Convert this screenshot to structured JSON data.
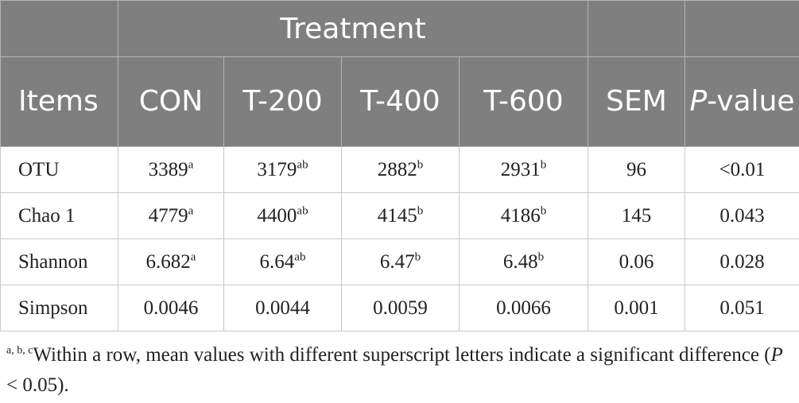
{
  "header": {
    "group_label": "Treatment",
    "items_label": "Items",
    "columns": [
      "CON",
      "T-200",
      "T-400",
      "T-600",
      "SEM"
    ],
    "pvalue_italic": "P",
    "pvalue_rest": "-value"
  },
  "rows": [
    {
      "item": "OTU",
      "values": [
        {
          "v": "3389",
          "s": "a"
        },
        {
          "v": "3179",
          "s": "ab"
        },
        {
          "v": "2882",
          "s": "b"
        },
        {
          "v": "2931",
          "s": "b"
        },
        {
          "v": "96",
          "s": ""
        },
        {
          "v": "<0.01",
          "s": ""
        }
      ]
    },
    {
      "item": "Chao 1",
      "values": [
        {
          "v": "4779",
          "s": "a"
        },
        {
          "v": "4400",
          "s": "ab"
        },
        {
          "v": "4145",
          "s": "b"
        },
        {
          "v": "4186",
          "s": "b"
        },
        {
          "v": "145",
          "s": ""
        },
        {
          "v": "0.043",
          "s": ""
        }
      ]
    },
    {
      "item": "Shannon",
      "values": [
        {
          "v": "6.682",
          "s": "a"
        },
        {
          "v": "6.64",
          "s": "ab"
        },
        {
          "v": "6.47",
          "s": "b"
        },
        {
          "v": "6.48",
          "s": "b"
        },
        {
          "v": "0.06",
          "s": ""
        },
        {
          "v": "0.028",
          "s": ""
        }
      ]
    },
    {
      "item": "Simpson",
      "values": [
        {
          "v": "0.0046",
          "s": ""
        },
        {
          "v": "0.0044",
          "s": ""
        },
        {
          "v": "0.0059",
          "s": ""
        },
        {
          "v": "0.0066",
          "s": ""
        },
        {
          "v": "0.001",
          "s": ""
        },
        {
          "v": "0.051",
          "s": ""
        }
      ]
    }
  ],
  "footnote": {
    "sup": "a, b, c",
    "text": "Within a row, mean values with different superscript letters indicate a significant difference (",
    "p": "P",
    "tail": " < 0.05)."
  },
  "colors": {
    "header_bg": "#7f7f7f",
    "header_text": "#ffffff",
    "border": "#c8c8c8"
  }
}
